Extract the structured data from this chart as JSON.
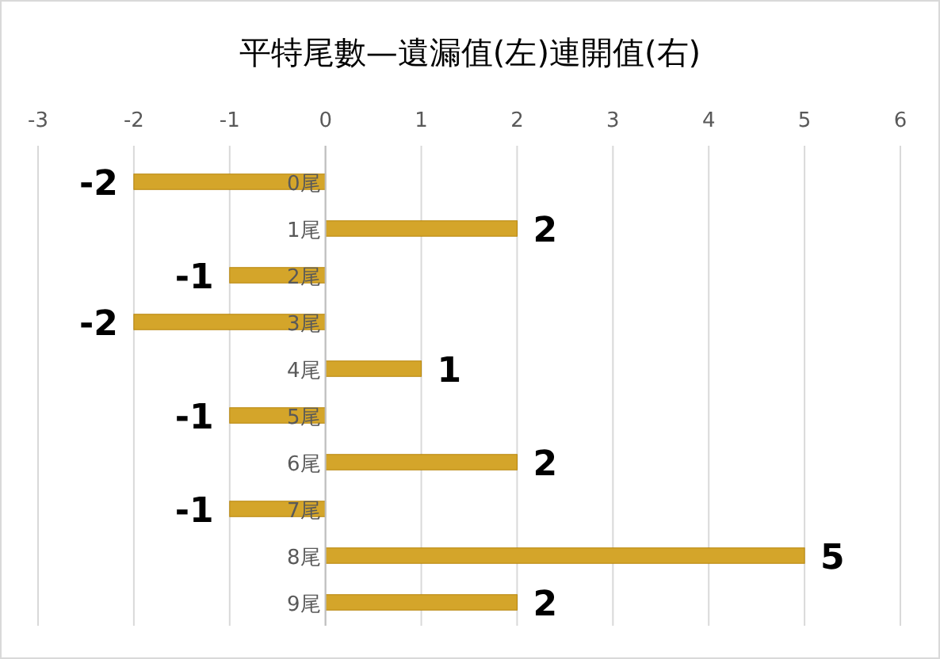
{
  "chart_data": {
    "type": "bar",
    "orientation": "horizontal",
    "title": "平特尾數—遺漏值(左)連開值(右)",
    "categories": [
      "0尾",
      "1尾",
      "2尾",
      "3尾",
      "4尾",
      "5尾",
      "6尾",
      "7尾",
      "8尾",
      "9尾"
    ],
    "values": [
      -2,
      2,
      -1,
      -2,
      1,
      -1,
      2,
      -1,
      5,
      2
    ],
    "color": "#d4a52a",
    "xlim": [
      -3,
      6
    ],
    "xticks": [
      -3,
      -2,
      -1,
      0,
      1,
      2,
      3,
      4,
      5,
      6
    ],
    "grid": "x",
    "data_labels": true
  }
}
